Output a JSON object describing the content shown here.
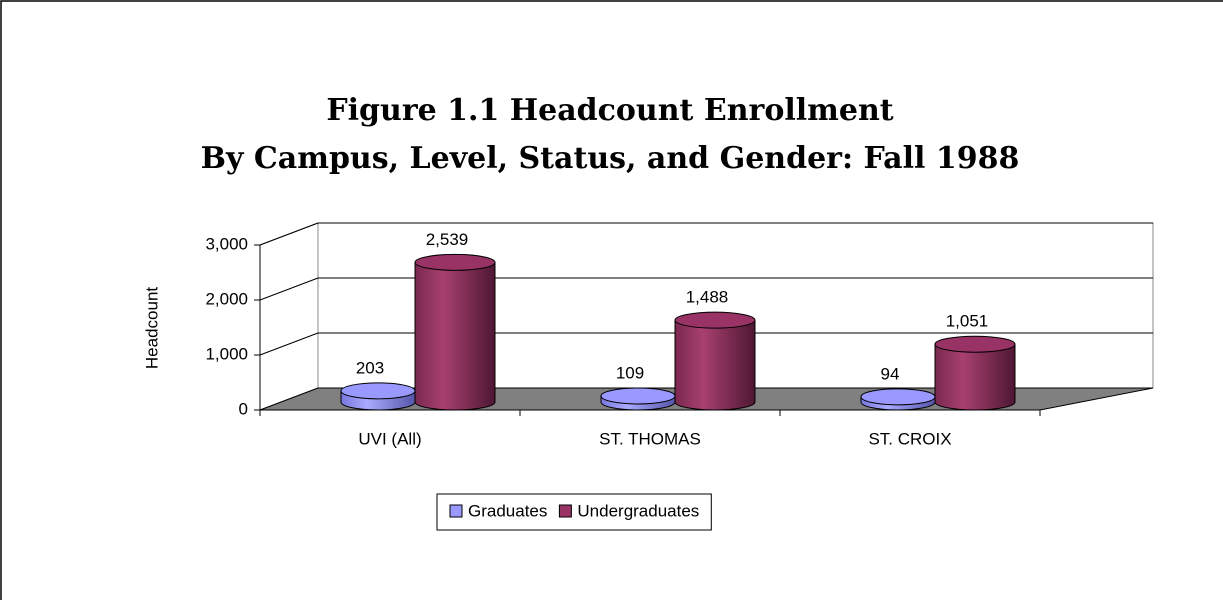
{
  "chart_data": {
    "type": "bar3d",
    "title": [
      "Figure 1.1 Headcount Enrollment",
      "By Campus, Level, Status, and Gender:  Fall 1988"
    ],
    "ylabel": "Headcount",
    "categories": [
      "UVI (All)",
      "ST. THOMAS",
      "ST. CROIX"
    ],
    "series": [
      {
        "name": "Graduates",
        "color": "#9999ff",
        "values": [
          203,
          109,
          94
        ],
        "value_labels": [
          "203",
          "109",
          "94"
        ]
      },
      {
        "name": "Undergraduates",
        "color": "#993366",
        "values": [
          2539,
          1488,
          1051
        ],
        "value_labels": [
          "2,539",
          "1,488",
          "1,051"
        ]
      }
    ],
    "ylim": [
      0,
      3000
    ],
    "yticks": [
      0,
      {
        "value": 1000,
        "label": "1,000"
      },
      {
        "value": 2000,
        "label": "2,000"
      },
      {
        "value": 3000,
        "label": "3,000"
      }
    ],
    "grid": true,
    "legend": "bottom"
  }
}
